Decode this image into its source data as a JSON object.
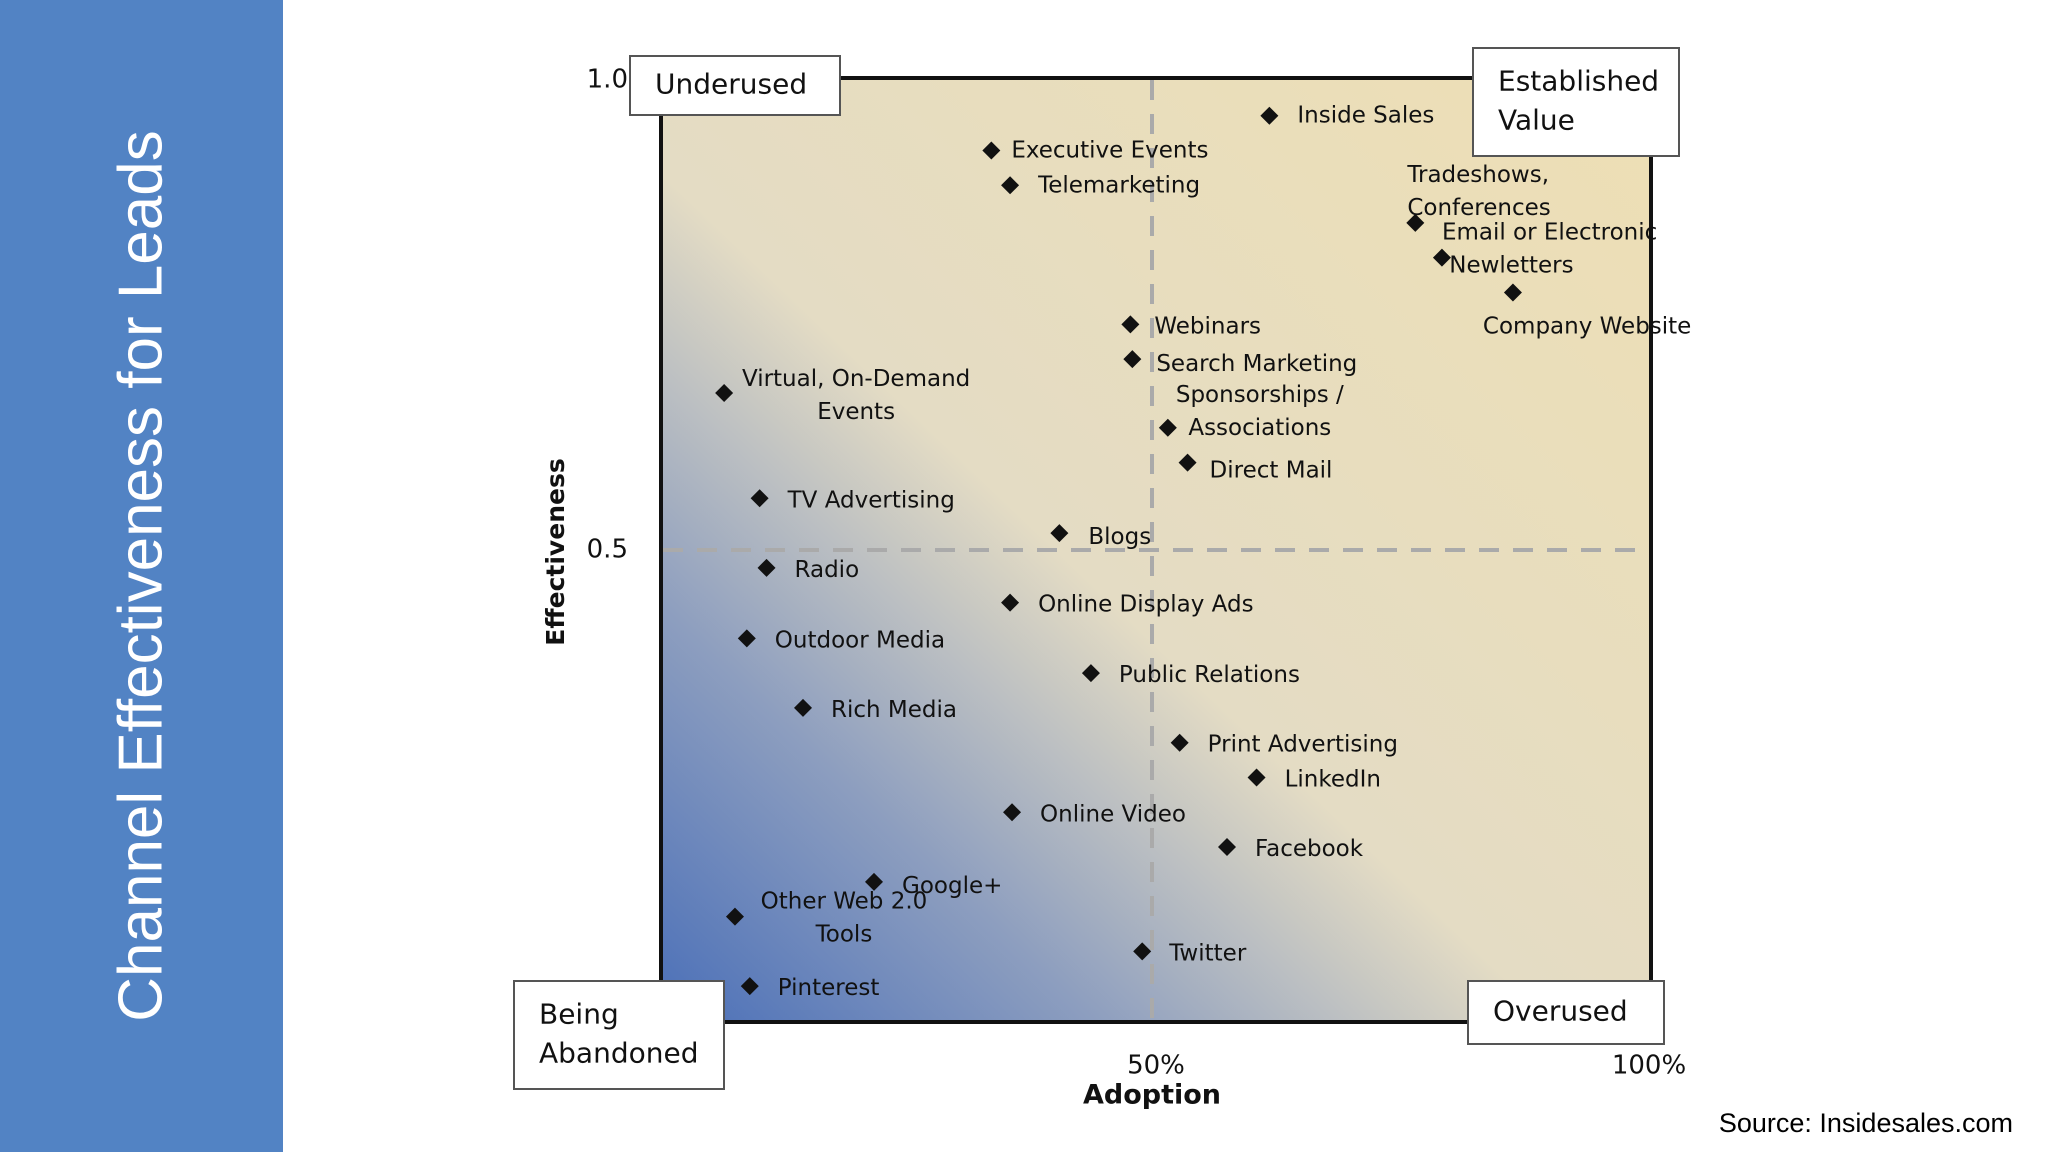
{
  "slide": {
    "title": "Channel Effectiveness for Leads",
    "source": "Source: Insidesales.com"
  },
  "colors": {
    "sidebar": "#5283c4",
    "gradient_low": "#4a6fb8",
    "gradient_mid": "#e4dcc4",
    "gradient_high": "#eedfb4",
    "marker": "#111111",
    "divider": "#aaaaaa"
  },
  "chart_data": {
    "type": "scatter",
    "title": "",
    "xlabel": "Adoption",
    "ylabel": "Effectiveness",
    "xlim": [
      0,
      100
    ],
    "ylim": [
      0,
      1.0
    ],
    "x_ticks": [
      {
        "value": 50,
        "label": "50%"
      },
      {
        "value": 100,
        "label": "100%"
      }
    ],
    "y_ticks": [
      {
        "value": 1.0,
        "label": "1.0"
      },
      {
        "value": 0.5,
        "label": "0.5"
      }
    ],
    "dividers": {
      "x": 50,
      "y": 0.5
    },
    "quadrants": [
      {
        "id": "underused",
        "text": [
          "Underused"
        ]
      },
      {
        "id": "established-value",
        "text": [
          "Established",
          "Value"
        ]
      },
      {
        "id": "being-abandoned",
        "text": [
          "Being",
          "Abandoned"
        ]
      },
      {
        "id": "overused",
        "text": [
          "Overused"
        ]
      }
    ],
    "points": [
      {
        "label": "Inside Sales",
        "x": 61.5,
        "y": 0.962
      },
      {
        "label": "Executive Events",
        "x": 33.3,
        "y": 0.925
      },
      {
        "label": "Telemarketing",
        "x": 35.2,
        "y": 0.888
      },
      {
        "label": "Tradeshows, Conferences",
        "x": 76.3,
        "y": 0.848
      },
      {
        "label": "Email or Electronic Newletters",
        "x": 79.0,
        "y": 0.811
      },
      {
        "label": "Company Website",
        "x": 86.2,
        "y": 0.774
      },
      {
        "label": "Webinars",
        "x": 47.4,
        "y": 0.74
      },
      {
        "label": "Search Marketing",
        "x": 47.6,
        "y": 0.703
      },
      {
        "label": "Virtual, On-Demand Events",
        "x": 6.2,
        "y": 0.667
      },
      {
        "label": "Sponsorships / Associations",
        "x": 51.2,
        "y": 0.63
      },
      {
        "label": "Direct Mail",
        "x": 53.2,
        "y": 0.593
      },
      {
        "label": "TV Advertising",
        "x": 9.8,
        "y": 0.555
      },
      {
        "label": "Blogs",
        "x": 40.2,
        "y": 0.518
      },
      {
        "label": "Radio",
        "x": 10.5,
        "y": 0.481
      },
      {
        "label": "Online Display Ads",
        "x": 35.2,
        "y": 0.444
      },
      {
        "label": "Outdoor Media",
        "x": 8.5,
        "y": 0.406
      },
      {
        "label": "Public Relations",
        "x": 43.4,
        "y": 0.369
      },
      {
        "label": "Rich Media",
        "x": 14.2,
        "y": 0.332
      },
      {
        "label": "Print Advertising",
        "x": 52.4,
        "y": 0.295
      },
      {
        "label": "LinkedIn",
        "x": 60.2,
        "y": 0.258
      },
      {
        "label": "Online Video",
        "x": 35.4,
        "y": 0.221
      },
      {
        "label": "Facebook",
        "x": 57.2,
        "y": 0.184
      },
      {
        "label": "Google+",
        "x": 21.4,
        "y": 0.147
      },
      {
        "label": "Other Web 2.0 Tools",
        "x": 7.3,
        "y": 0.11
      },
      {
        "label": "Twitter",
        "x": 48.6,
        "y": 0.073
      },
      {
        "label": "Pinterest",
        "x": 8.8,
        "y": 0.036
      }
    ]
  }
}
